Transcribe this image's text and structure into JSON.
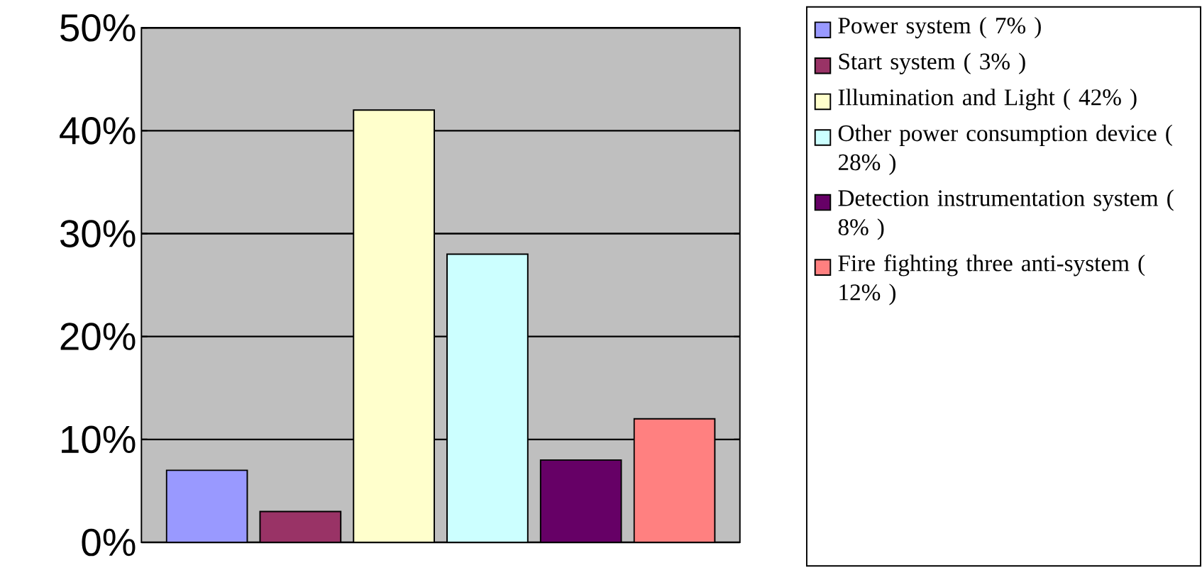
{
  "chart_data": {
    "type": "bar",
    "categories": [
      null,
      null,
      null,
      null,
      null,
      null
    ],
    "series": [
      {
        "name": "Power system ( 7% )",
        "color": "#9999ff",
        "values": [
          7,
          null,
          null,
          null,
          null,
          null
        ]
      },
      {
        "name": "Start system ( 3% )",
        "color": "#993366",
        "values": [
          null,
          3,
          null,
          null,
          null,
          null
        ]
      },
      {
        "name": "Illumination and Light ( 42% )",
        "color": "#ffffcc",
        "values": [
          null,
          null,
          42,
          null,
          null,
          null
        ]
      },
      {
        "name": "Other power consumption device ( 28% )",
        "color": "#ccffff",
        "values": [
          null,
          null,
          null,
          28,
          null,
          null
        ]
      },
      {
        "name": "Detection instrumentation system ( 8% )",
        "color": "#660066",
        "values": [
          null,
          null,
          null,
          null,
          8,
          null
        ]
      },
      {
        "name": "Fire fighting three anti-system ( 12% )",
        "color": "#ff8080",
        "values": [
          null,
          null,
          null,
          null,
          null,
          12
        ]
      }
    ],
    "ylim": [
      0,
      50
    ],
    "yticks": [
      {
        "value": 0,
        "label": "0%"
      },
      {
        "value": 10,
        "label": "10%"
      },
      {
        "value": 20,
        "label": "20%"
      },
      {
        "value": 30,
        "label": "30%"
      },
      {
        "value": 40,
        "label": "40%"
      },
      {
        "value": 50,
        "label": "50%"
      }
    ],
    "grid": "y",
    "legend": "right"
  }
}
